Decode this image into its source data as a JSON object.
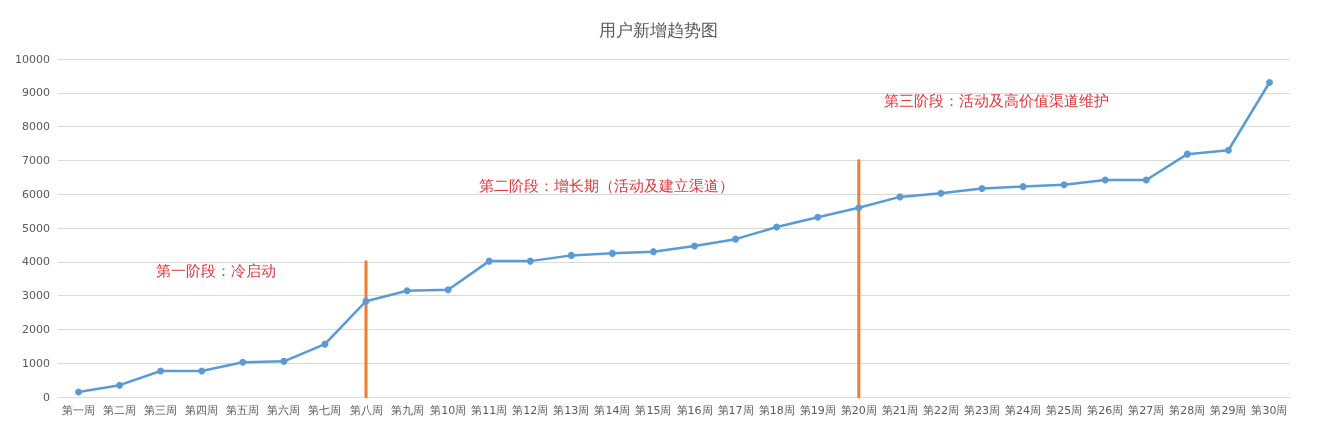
{
  "chart_data": {
    "type": "line",
    "title": "用户新增趋势图",
    "categories": [
      "第一周",
      "第二周",
      "第三周",
      "第四周",
      "第五周",
      "第六周",
      "第七周",
      "第八周",
      "第九周",
      "第10周",
      "第11周",
      "第12周",
      "第13周",
      "第14周",
      "第15周",
      "第16周",
      "第17周",
      "第18周",
      "第19周",
      "第20周",
      "第21周",
      "第22周",
      "第23周",
      "第24周",
      "第25周",
      "第26周",
      "第27周",
      "第28周",
      "第29周",
      "第30周"
    ],
    "series": [
      {
        "color": "#5b9bd5",
        "marker": "circle",
        "values": [
          150,
          350,
          770,
          770,
          1030,
          1055,
          1565,
          2835,
          3145,
          3175,
          4020,
          4020,
          4190,
          4250,
          4300,
          4470,
          4670,
          5030,
          5320,
          5600,
          5920,
          6030,
          6170,
          6225,
          6280,
          6420,
          6420,
          7185,
          7300,
          9305
        ]
      },
      {
        "color": "#ed7d31",
        "marker": "none",
        "x": [
          "第八周",
          "第八周"
        ],
        "values": [
          0,
          4000
        ]
      },
      {
        "color": "#ed7d31",
        "marker": "none",
        "x": [
          "第20周",
          "第20周"
        ],
        "values": [
          0,
          7000
        ]
      }
    ],
    "annotations": [
      "第一阶段：冷启动",
      "第二阶段：增长期（活动及建立渠道）",
      "第三阶段：活动及高价值渠道维护"
    ],
    "ylim": [
      0,
      10000
    ],
    "yticks": [
      0,
      1000,
      2000,
      3000,
      4000,
      5000,
      6000,
      7000,
      8000,
      9000,
      10000
    ],
    "grid": "y",
    "line_style": "solid"
  }
}
